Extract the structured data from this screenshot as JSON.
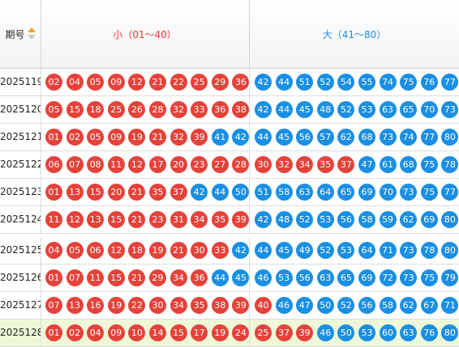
{
  "header": {
    "period_label": "期号",
    "small_label": "小（01～40）",
    "big_label": "大（41～80）"
  },
  "colors": {
    "red": "#e5423a",
    "blue": "#1a8fe3",
    "highlight": "#eef8d8"
  },
  "rows": [
    {
      "period": "2025119",
      "numbers": [
        "02",
        "04",
        "05",
        "09",
        "12",
        "21",
        "22",
        "25",
        "29",
        "36",
        "42",
        "44",
        "51",
        "52",
        "54",
        "55",
        "74",
        "75",
        "76",
        "77"
      ]
    },
    {
      "period": "2025120",
      "numbers": [
        "05",
        "15",
        "18",
        "25",
        "26",
        "28",
        "32",
        "33",
        "36",
        "38",
        "42",
        "44",
        "45",
        "48",
        "52",
        "53",
        "63",
        "65",
        "70",
        "73"
      ]
    },
    {
      "period": "2025121",
      "numbers": [
        "01",
        "02",
        "05",
        "09",
        "19",
        "21",
        "32",
        "39",
        "41",
        "42",
        "44",
        "45",
        "56",
        "57",
        "62",
        "68",
        "73",
        "74",
        "77",
        "80"
      ]
    },
    {
      "period": "2025122",
      "numbers": [
        "06",
        "07",
        "08",
        "11",
        "12",
        "17",
        "20",
        "23",
        "27",
        "28",
        "30",
        "32",
        "34",
        "35",
        "37",
        "47",
        "61",
        "68",
        "75",
        "78"
      ]
    },
    {
      "period": "2025123",
      "numbers": [
        "01",
        "13",
        "15",
        "20",
        "21",
        "35",
        "37",
        "42",
        "44",
        "50",
        "51",
        "58",
        "63",
        "64",
        "65",
        "69",
        "70",
        "73",
        "75",
        "77"
      ]
    },
    {
      "period": "2025124",
      "numbers": [
        "11",
        "12",
        "13",
        "15",
        "21",
        "23",
        "31",
        "34",
        "35",
        "39",
        "42",
        "48",
        "52",
        "53",
        "56",
        "58",
        "59",
        "62",
        "69",
        "80"
      ]
    },
    {
      "period": "2025125",
      "numbers": [
        "04",
        "05",
        "06",
        "12",
        "18",
        "19",
        "21",
        "30",
        "33",
        "42",
        "44",
        "45",
        "49",
        "52",
        "53",
        "64",
        "71",
        "73",
        "78",
        "80"
      ]
    },
    {
      "period": "2025126",
      "numbers": [
        "01",
        "07",
        "11",
        "15",
        "21",
        "29",
        "34",
        "36",
        "44",
        "45",
        "46",
        "53",
        "56",
        "63",
        "65",
        "69",
        "72",
        "73",
        "75",
        "79"
      ]
    },
    {
      "period": "2025127",
      "numbers": [
        "07",
        "13",
        "16",
        "19",
        "22",
        "30",
        "34",
        "35",
        "38",
        "39",
        "40",
        "46",
        "47",
        "50",
        "52",
        "56",
        "58",
        "62",
        "67",
        "71"
      ]
    },
    {
      "period": "2025128",
      "numbers": [
        "01",
        "02",
        "04",
        "09",
        "10",
        "14",
        "15",
        "17",
        "19",
        "24",
        "25",
        "37",
        "39",
        "46",
        "50",
        "53",
        "60",
        "63",
        "76",
        "80"
      ]
    }
  ]
}
